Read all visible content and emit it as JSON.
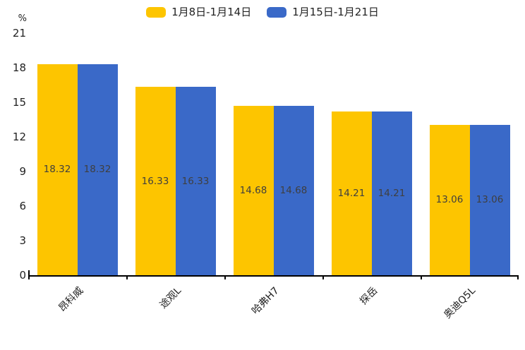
{
  "chart_data": {
    "type": "bar",
    "title": "",
    "categories": [
      "昂科威",
      "途观L",
      "哈弗H7",
      "探岳",
      "奥迪Q5L"
    ],
    "series": [
      {
        "name": "1月8日-1月14日",
        "color": "#FDC500",
        "values": [
          18.32,
          16.33,
          14.68,
          14.21,
          13.06
        ]
      },
      {
        "name": "1月15日-1月21日",
        "color": "#3A69C8",
        "values": [
          18.32,
          16.33,
          14.68,
          14.21,
          13.06
        ]
      }
    ],
    "ylabel": "%",
    "ylim": [
      0,
      21
    ],
    "yticks": [
      0,
      3,
      6,
      9,
      12,
      15,
      18,
      21
    ],
    "grid": false,
    "legend_position": "top",
    "value_labels": true,
    "value_label_format": "2dp",
    "colors": {
      "axis": "#000000",
      "tick_text": "#222222",
      "value_text": "#3f3f3f",
      "background": "#ffffff"
    }
  }
}
